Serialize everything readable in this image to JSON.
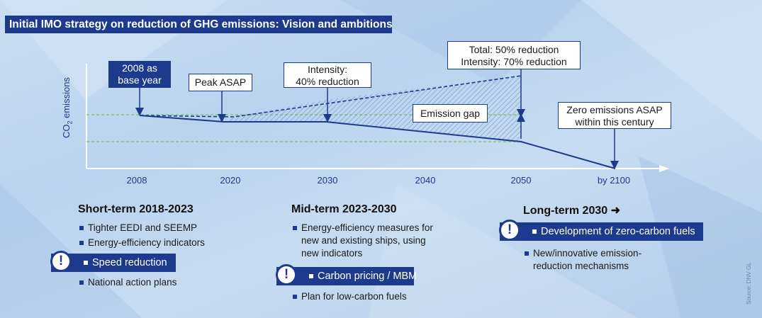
{
  "title": "Initial IMO strategy on reduction of GHG emissions: Vision and ambitions",
  "y_axis_label": {
    "main": "CO",
    "sub": "2",
    "rest": " emissions"
  },
  "x_ticks": [
    "2008",
    "2020",
    "2030",
    "2040",
    "2050",
    "by 2100"
  ],
  "callouts": {
    "base_year": [
      "2008 as",
      "base year"
    ],
    "peak": "Peak ASAP",
    "intensity": [
      "Intensity:",
      "40% reduction"
    ],
    "total": [
      "Total: 50% reduction",
      "Intensity: 70% reduction"
    ],
    "gap": "Emission gap",
    "zero": [
      "Zero emissions ASAP",
      "within this century"
    ]
  },
  "columns": {
    "short": {
      "heading": "Short-term 2018-2023",
      "items": [
        "Tighter EEDI and SEEMP",
        "Energy-efficiency indicators"
      ],
      "highlight": "Speed reduction",
      "items_after": [
        "National action plans"
      ]
    },
    "mid": {
      "heading": "Mid-term 2023-2030",
      "items": [
        "Energy-efficiency measures for",
        "new and existing ships, using",
        "new indicators"
      ],
      "highlight": "Carbon pricing / MBM",
      "items_after": [
        "Plan for low-carbon fuels"
      ]
    },
    "long": {
      "heading": "Long-term 2030 ➜",
      "highlight": "Development of zero-carbon fuels",
      "items_after": [
        "New/innovative emission-",
        "reduction mechanisms"
      ]
    }
  },
  "exclaim": "!",
  "source": "Source: DNV GL",
  "colors": {
    "navy": "#1e3a8c",
    "guide": "#7cc35a",
    "hatch": "#6f8fc4"
  }
}
